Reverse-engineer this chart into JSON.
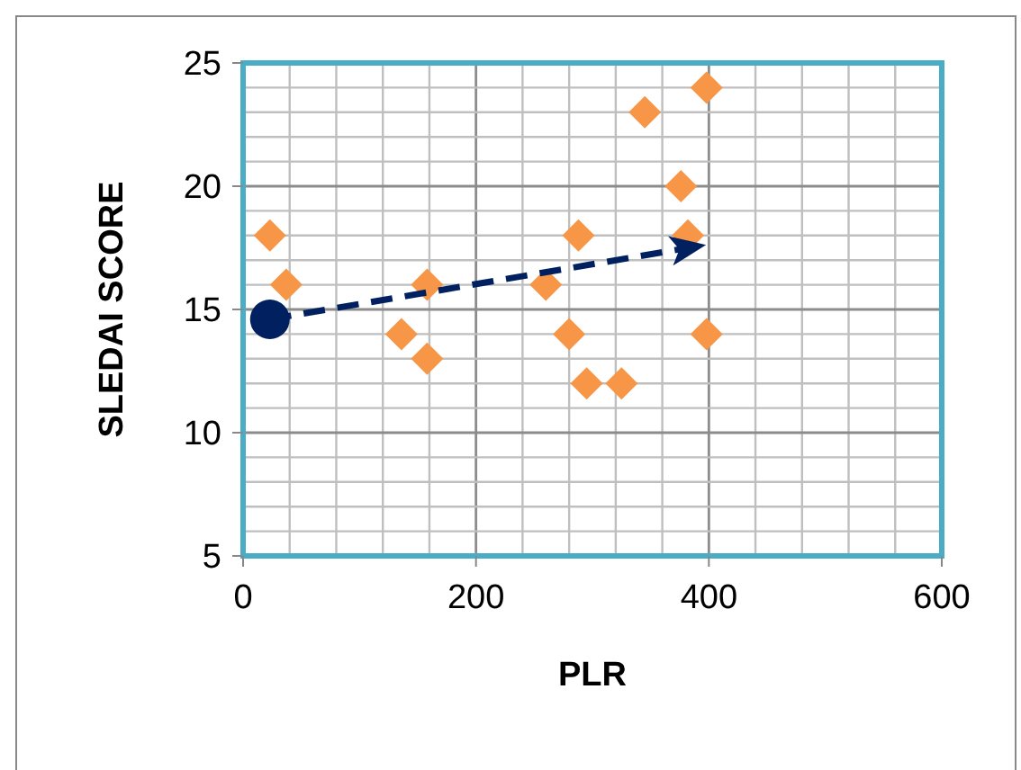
{
  "chart_data": {
    "type": "scatter",
    "xlabel": "PLR",
    "ylabel": "SLEDAI SCORE",
    "xlim": [
      0,
      600
    ],
    "ylim": [
      5,
      25
    ],
    "xticks": [
      0,
      {
        "value": 40,
        "label": null
      },
      {
        "value": 80,
        "label": null
      },
      {
        "value": 120,
        "label": null
      },
      {
        "value": 160,
        "label": null
      },
      200,
      {
        "value": 240,
        "label": null
      },
      {
        "value": 280,
        "label": null
      },
      {
        "value": 320,
        "label": null
      },
      {
        "value": 360,
        "label": null
      },
      400,
      {
        "value": 440,
        "label": null
      },
      {
        "value": 480,
        "label": null
      },
      {
        "value": 520,
        "label": null
      },
      {
        "value": 560,
        "label": null
      },
      600
    ],
    "yticks": [
      5,
      {
        "value": 6,
        "label": null
      },
      {
        "value": 7,
        "label": null
      },
      {
        "value": 8,
        "label": null
      },
      {
        "value": 9,
        "label": null
      },
      10,
      {
        "value": 11,
        "label": null
      },
      {
        "value": 12,
        "label": null
      },
      {
        "value": 13,
        "label": null
      },
      {
        "value": 14,
        "label": null
      },
      15,
      {
        "value": 16,
        "label": null
      },
      {
        "value": 17,
        "label": null
      },
      {
        "value": 18,
        "label": null
      },
      {
        "value": 19,
        "label": null
      },
      20,
      {
        "value": 21,
        "label": null
      },
      {
        "value": 22,
        "label": null
      },
      {
        "value": 23,
        "label": null
      },
      {
        "value": 24,
        "label": null
      },
      25
    ],
    "grid": true,
    "series": [
      {
        "color": "#f79646",
        "marker": "diamond",
        "x": [
          23,
          37,
          136,
          158,
          158,
          260,
          288,
          280,
          295,
          325,
          345,
          376,
          382,
          398,
          398
        ],
        "values": [
          18,
          16,
          14,
          16,
          13,
          16,
          18,
          14,
          12,
          12,
          23,
          20,
          18,
          24,
          14
        ]
      },
      {
        "color": "#002060",
        "marker": "circle",
        "x": [
          23
        ],
        "values": [
          14.6
        ]
      },
      {
        "type": "line",
        "color": "#002060",
        "line_style": "dashed",
        "marker": "none",
        "x": [
          23,
          395
        ],
        "values": [
          14.6,
          17.6
        ]
      }
    ]
  }
}
